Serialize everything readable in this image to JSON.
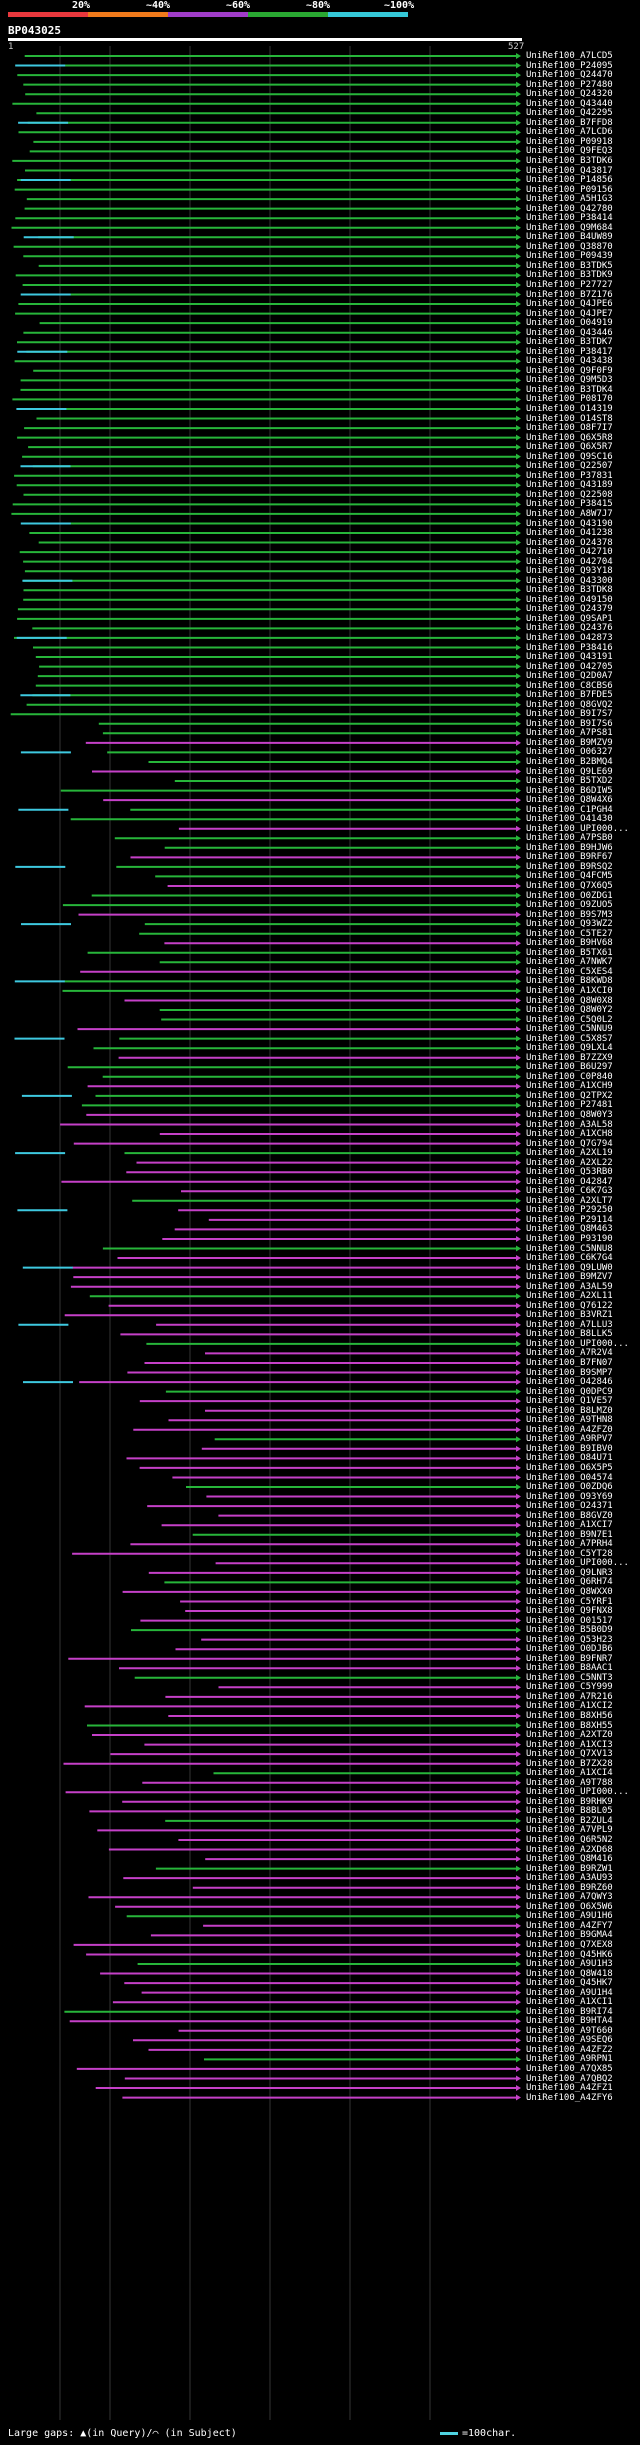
{
  "legend": {
    "ticks": [
      "20%",
      "~40%",
      "~60%",
      "~80%",
      "~100%"
    ],
    "colors": [
      "#e8383d",
      "#f07a1b",
      "#a03cc8",
      "#2aa832",
      "#35c8d8"
    ]
  },
  "query": {
    "id": "BP043025",
    "start": "1",
    "end": "527"
  },
  "colors": {
    "green": "#27b53a",
    "magenta": "#c540c8",
    "cyan": "#3ec9e0",
    "grid": "#333333"
  },
  "hits": [
    "UniRef100_A7LCD5",
    "UniRef100_P24095",
    "UniRef100_Q24470",
    "UniRef100_P27480",
    "UniRef100_Q24320",
    "UniRef100_Q43440",
    "UniRef100_Q42295",
    "UniRef100_B7FFD8",
    "UniRef100_A7LCD6",
    "UniRef100_P09918",
    "UniRef100_Q9FEQ3",
    "UniRef100_B3TDK6",
    "UniRef100_Q43817",
    "UniRef100_P14856",
    "UniRef100_P09156",
    "UniRef100_A5H1G3",
    "UniRef100_Q42780",
    "UniRef100_P38414",
    "UniRef100_Q9M684",
    "UniRef100_B4UW89",
    "UniRef100_Q38870",
    "UniRef100_P09439",
    "UniRef100_B3TDK5",
    "UniRef100_B3TDK9",
    "UniRef100_P27727",
    "UniRef100_B7Z176",
    "UniRef100_Q4JPE6",
    "UniRef100_Q4JPE7",
    "UniRef100_O04919",
    "UniRef100_Q43446",
    "UniRef100_B3TDK7",
    "UniRef100_P38417",
    "UniRef100_Q43438",
    "UniRef100_Q9F0F9",
    "UniRef100_Q9M5D3",
    "UniRef100_B3TDK4",
    "UniRef100_P08170",
    "UniRef100_O14319",
    "UniRef100_O14ST8",
    "UniRef100_O8F7I7",
    "UniRef100_Q6X5R8",
    "UniRef100_Q6X5R7",
    "UniRef100_Q9SC16",
    "UniRef100_Q22507",
    "UniRef100_P37831",
    "UniRef100_Q43189",
    "UniRef100_Q22508",
    "UniRef100_P38415",
    "UniRef100_A8W7J7",
    "UniRef100_Q43190",
    "UniRef100_O41238",
    "UniRef100_O24378",
    "UniRef100_O42710",
    "UniRef100_O42704",
    "UniRef100_Q93Y18",
    "UniRef100_Q43300",
    "UniRef100_B3TDK8",
    "UniRef100_O49150",
    "UniRef100_Q24379",
    "UniRef100_Q9SAP1",
    "UniRef100_Q24376",
    "UniRef100_O42873",
    "UniRef100_P38416",
    "UniRef100_Q43191",
    "UniRef100_O42705",
    "UniRef100_Q2D0A7",
    "UniRef100_C8CBS6",
    "UniRef100_B7FDE5",
    "UniRef100_Q8GVQ2",
    "UniRef100_B9I7S7",
    "UniRef100_B9I7S6",
    "UniRef100_A7PS81",
    "UniRef100_B9MZV9",
    "UniRef100_O06327",
    "UniRef100_B2BMQ4",
    "UniRef100_Q9LE69",
    "UniRef100_B5TXD2",
    "UniRef100_B6DIW5",
    "UniRef100_Q8W4X6",
    "UniRef100_C1PGH4",
    "UniRef100_O41430",
    "UniRef100_UPI000...",
    "UniRef100_A7PSB0",
    "UniRef100_B9HJW6",
    "UniRef100_B9RF67",
    "UniRef100_B9RSQ2",
    "UniRef100_Q4FCM5",
    "UniRef100_Q7X6Q5",
    "UniRef100_O0ZDG1",
    "UniRef100_O9ZUO5",
    "UniRef100_B9S7M3",
    "UniRef100_Q93WZ2",
    "UniRef100_C5TE27",
    "UniRef100_B9HV68",
    "UniRef100_B5TX61",
    "UniRef100_A7NWK7",
    "UniRef100_C5XES4",
    "UniRef100_B8KWD8",
    "UniRef100_A1XCI0",
    "UniRef100_Q8W0X8",
    "UniRef100_Q8W0Y2",
    "UniRef100_C5Q0L2",
    "UniRef100_C5NNU9",
    "UniRef100_C5X8S7",
    "UniRef100_Q9LXL4",
    "UniRef100_B7ZZX9",
    "UniRef100_B6U297",
    "UniRef100_C0P840",
    "UniRef100_A1XCH9",
    "UniRef100_Q2TPX2",
    "UniRef100_P27481",
    "UniRef100_Q8W0Y3",
    "UniRef100_A3AL58",
    "UniRef100_A1XCH8",
    "UniRef100_Q7G794",
    "UniRef100_A2XL19",
    "UniRef100_A2XL22",
    "UniRef100_Q53RB0",
    "UniRef100_O42847",
    "UniRef100_C6K7G3",
    "UniRef100_A2XLT7",
    "UniRef100_P29250",
    "UniRef100_P29114",
    "UniRef100_Q8M463",
    "UniRef100_P93190",
    "UniRef100_C5NNU8",
    "UniRef100_C6K7G4",
    "UniRef100_Q9LUW0",
    "UniRef100_B9MZV7",
    "UniRef100_A3AL59",
    "UniRef100_A2XL11",
    "UniRef100_Q76122",
    "UniRef100_B3VRZ1",
    "UniRef100_A7LLU3",
    "UniRef100_B8LLK5",
    "UniRef100_UPI000...",
    "UniRef100_A7R2V4",
    "UniRef100_B7FN07",
    "UniRef100_B9SMP7",
    "UniRef100_O42846",
    "UniRef100_Q0DPC9",
    "UniRef100_Q1VE57",
    "UniRef100_B8LMZ0",
    "UniRef100_A9THN8",
    "UniRef100_A4ZFZ0",
    "UniRef100_A9RPV7",
    "UniRef100_B9IBV0",
    "UniRef100_O84U71",
    "UniRef100_O6X5P5",
    "UniRef100_O04574",
    "UniRef100_O0ZDQ6",
    "UniRef100_O93Y69",
    "UniRef100_O24371",
    "UniRef100_B8GVZ0",
    "UniRef100_A1XCI7",
    "UniRef100_B9N7E1",
    "UniRef100_A7PRH4",
    "UniRef100_C5YT28",
    "UniRef100_UPI000...",
    "UniRef100_Q9LNR3",
    "UniRef100_Q6RH74",
    "UniRef100_Q8WXX0",
    "UniRef100_C5YRF1",
    "UniRef100_Q9FNX8",
    "UniRef100_O01517",
    "UniRef100_B5B0D9",
    "UniRef100_Q53H23",
    "UniRef100_O0DJB6",
    "UniRef100_B9FNR7",
    "UniRef100_B8AAC1",
    "UniRef100_C5NNT3",
    "UniRef100_C5Y999",
    "UniRef100_A7R216",
    "UniRef100_A1XCI2",
    "UniRef100_B8XH56",
    "UniRef100_B8XH55",
    "UniRef100_A2XTZ0",
    "UniRef100_A1XCI3",
    "UniRef100_Q7XV13",
    "UniRef100_B7ZX28",
    "UniRef100_A1XCI4",
    "UniRef100_A9T788",
    "UniRef100_UPI000...",
    "UniRef100_B9RHK9",
    "UniRef100_B8BL05",
    "UniRef100_B2ZUL4",
    "UniRef100_A7VPL9",
    "UniRef100_Q6R5N2",
    "UniRef100_A2XD68",
    "UniRef100_Q8M416",
    "UniRef100_B9RZW1",
    "UniRef100_A3AU93",
    "UniRef100_B9RZ60",
    "UniRef100_A7QWY3",
    "UniRef100_O6X5W6",
    "UniRef100_A9U1H6",
    "UniRef100_A4ZFY7",
    "UniRef100_B9GMA4",
    "UniRef100_Q7XEX8",
    "UniRef100_Q45HK6",
    "UniRef100_A9U1H3",
    "UniRef100_Q8W418",
    "UniRef100_Q45HK7",
    "UniRef100_A9U1H4",
    "UniRef100_A1XCI1",
    "UniRef100_B9RI74",
    "UniRef100_B9HTA4",
    "UniRef100_A9T660",
    "UniRef100_A9SEQ6",
    "UniRef100_A4ZFZ2",
    "UniRef100_A9RPN1",
    "UniRef100_A7QX85",
    "UniRef100_A7QBQ2",
    "UniRef100_A4ZFZ1",
    "UniRef100_A4ZFY6"
  ],
  "footer": {
    "gaps_text": "Large gaps: ▲(in Query)/⌒ (in Subject)",
    "scale_text": "=100char."
  }
}
